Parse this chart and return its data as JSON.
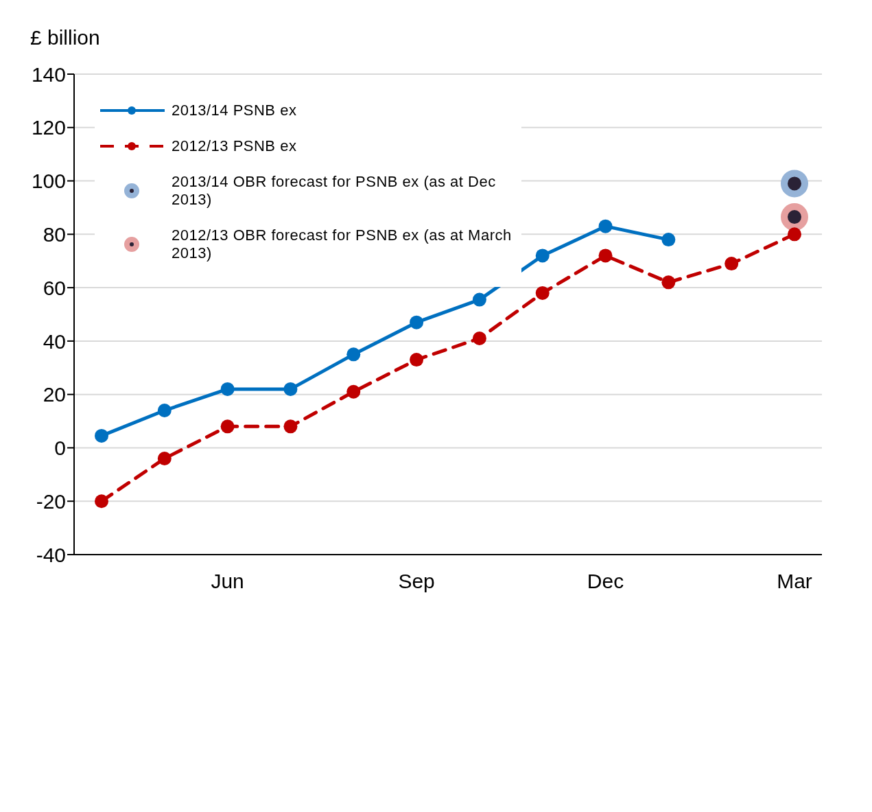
{
  "chart_data": {
    "type": "line",
    "ylabel": "£ billion",
    "categories": [
      null,
      null,
      "Jun",
      null,
      null,
      "Sep",
      null,
      null,
      "Dec",
      null,
      null,
      "Mar"
    ],
    "series": [
      {
        "name": "2013/14 PSNB ex",
        "color": "#0070c0",
        "line_style": "solid",
        "values": [
          4.5,
          14,
          22,
          22,
          35,
          47,
          55.5,
          72,
          83,
          78,
          null,
          null
        ]
      },
      {
        "name": "2012/13 PSNB ex",
        "color": "#c00000",
        "line_style": "dashed",
        "values": [
          -20,
          -4,
          8,
          8,
          21,
          33,
          41,
          58,
          72,
          62,
          69,
          80
        ]
      },
      {
        "name": "2013/14 OBR forecast for PSNB ex (as at Dec 2013)",
        "type": "scatter",
        "color": "#95b3d7",
        "values": [
          null,
          null,
          null,
          null,
          null,
          null,
          null,
          null,
          null,
          null,
          null,
          99
        ]
      },
      {
        "name": "2012/13 OBR forecast for PSNB ex (as at March 2013)",
        "type": "scatter",
        "color": "#e6a0a0",
        "values": [
          null,
          null,
          null,
          null,
          null,
          null,
          null,
          null,
          null,
          null,
          null,
          86.5
        ]
      }
    ],
    "ylim": [
      -40,
      140
    ],
    "yticks": [
      -40,
      -20,
      0,
      20,
      40,
      60,
      80,
      100,
      120,
      140
    ],
    "grid": "y",
    "legend": "top left",
    "marker": "circle"
  }
}
